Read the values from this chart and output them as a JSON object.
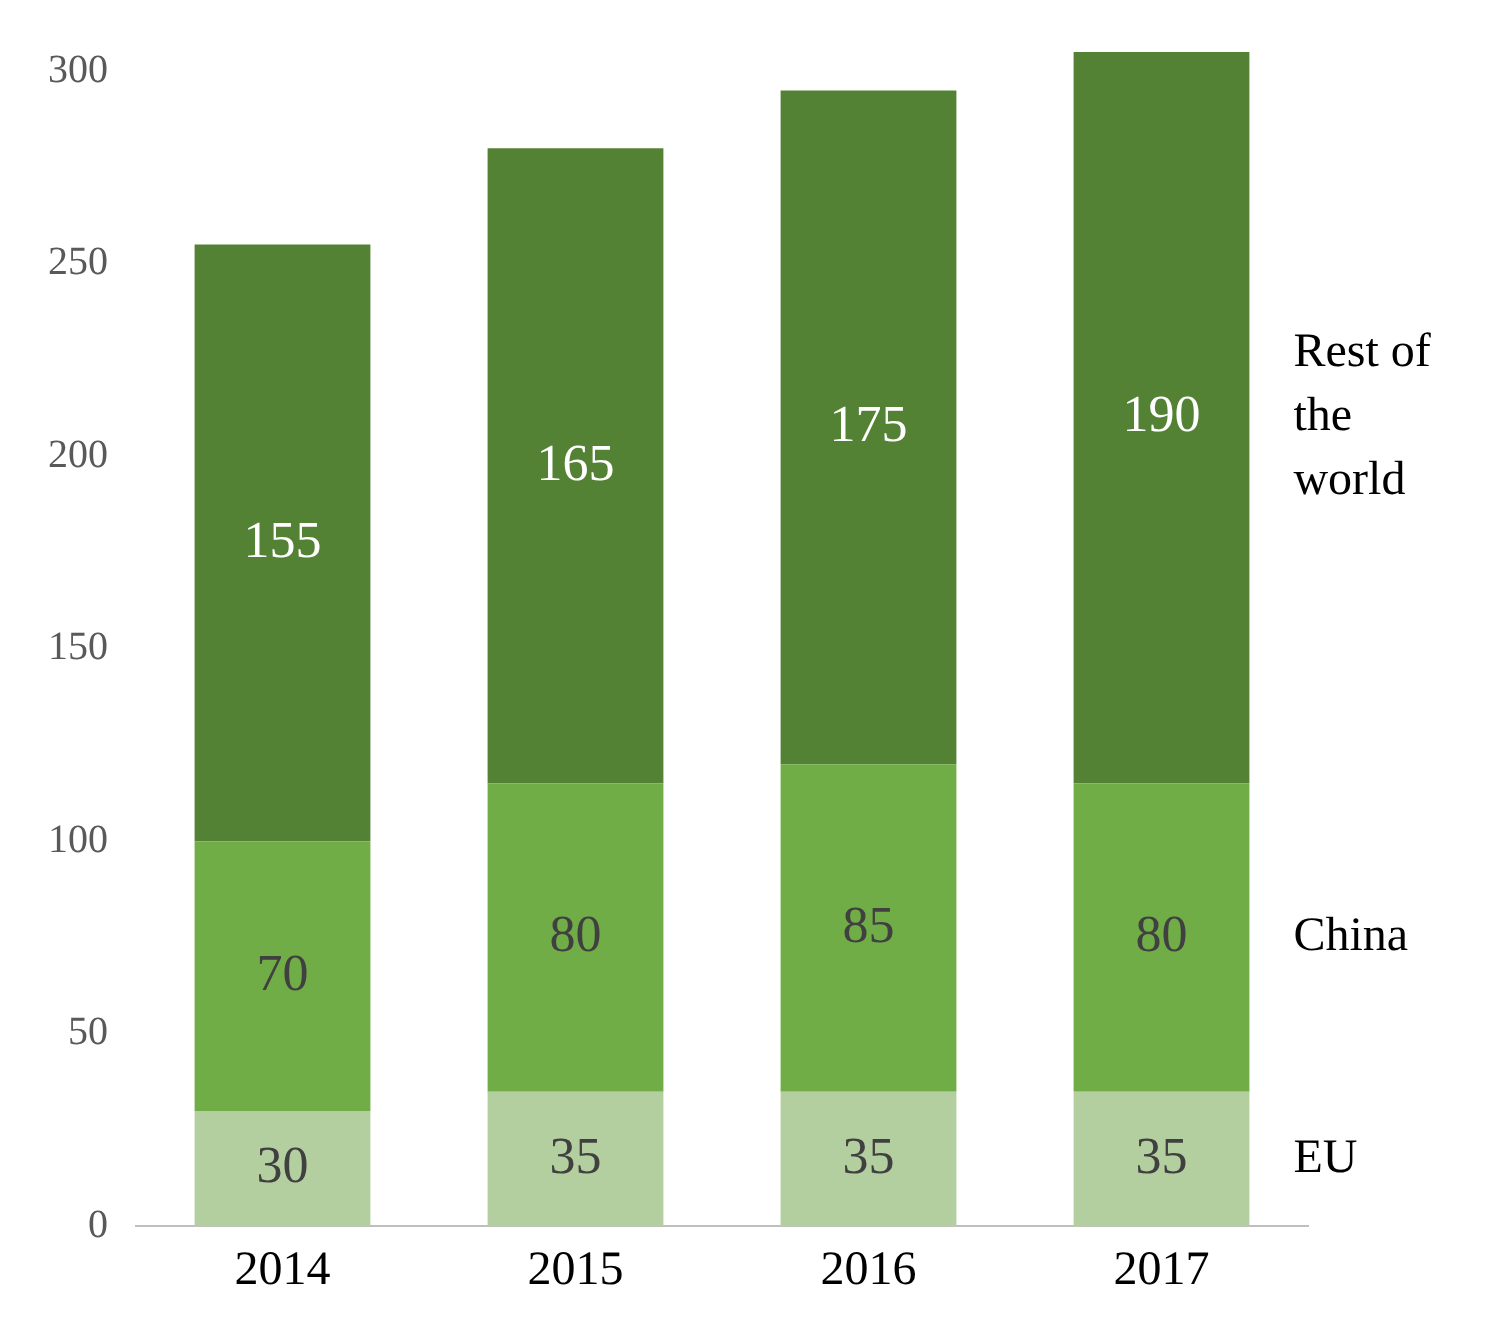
{
  "chart_data": {
    "type": "bar",
    "stacked": true,
    "categories": [
      "2014",
      "2015",
      "2016",
      "2017"
    ],
    "series": [
      {
        "name": "EU",
        "color": "#b4cf9f",
        "values": [
          30,
          35,
          35,
          35
        ]
      },
      {
        "name": "China",
        "color": "#70ad47",
        "values": [
          70,
          80,
          85,
          80
        ]
      },
      {
        "name": "Rest of the world",
        "color": "#548235",
        "values": [
          155,
          165,
          175,
          190
        ]
      }
    ],
    "ylim": [
      0,
      305
    ],
    "yticks": [
      0,
      50,
      100,
      150,
      200,
      250,
      300
    ],
    "data_labels": true,
    "grid": false,
    "legend": false
  }
}
